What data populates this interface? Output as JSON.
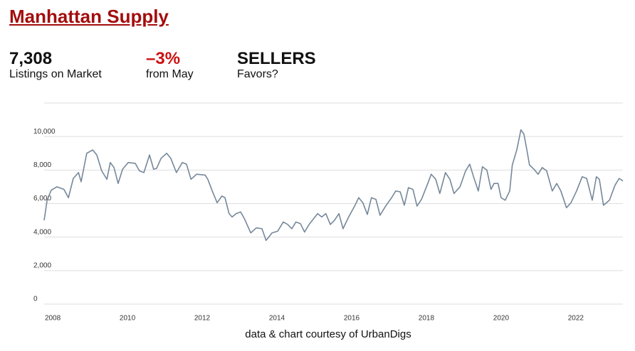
{
  "header": {
    "title": "Manhattan Supply"
  },
  "stats": [
    {
      "value": "7,308",
      "label": "Listings on Market"
    },
    {
      "value": "–3%",
      "label": "from May"
    },
    {
      "value": "SELLERS",
      "label": "Favors?"
    }
  ],
  "chart_data": {
    "type": "line",
    "color": "#76889a",
    "xlim": [
      2007.77,
      2023.26
    ],
    "xticks": [
      2008,
      2010,
      2012,
      2014,
      2016,
      2018,
      2020,
      2022
    ],
    "ylim": [
      0,
      12000
    ],
    "yticks": [
      0,
      {
        "value": 2000,
        "label": "2,000"
      },
      {
        "value": 4000,
        "label": "4,000"
      },
      {
        "value": 6000,
        "label": "6,000"
      },
      {
        "value": 8000,
        "label": "8,000"
      },
      {
        "value": 10000,
        "label": "10,000"
      }
    ],
    "grid": true,
    "x": [
      2007.77,
      2007.85,
      2007.96,
      2008.11,
      2008.3,
      2008.42,
      2008.55,
      2008.69,
      2008.76,
      2008.91,
      2009.07,
      2009.18,
      2009.31,
      2009.45,
      2009.54,
      2009.64,
      2009.75,
      2009.87,
      2010.02,
      2010.21,
      2010.32,
      2010.44,
      2010.59,
      2010.7,
      2010.78,
      2010.9,
      2011.05,
      2011.16,
      2011.31,
      2011.47,
      2011.58,
      2011.7,
      2011.85,
      2012.08,
      2012.15,
      2012.27,
      2012.4,
      2012.53,
      2012.61,
      2012.72,
      2012.8,
      2012.91,
      2013.03,
      2013.14,
      2013.3,
      2013.45,
      2013.6,
      2013.71,
      2013.87,
      2014.02,
      2014.17,
      2014.29,
      2014.4,
      2014.51,
      2014.63,
      2014.74,
      2014.86,
      2015.09,
      2015.2,
      2015.31,
      2015.43,
      2015.54,
      2015.66,
      2015.77,
      2015.92,
      2016.08,
      2016.19,
      2016.3,
      2016.42,
      2016.53,
      2016.65,
      2016.76,
      2016.91,
      2017.07,
      2017.18,
      2017.3,
      2017.41,
      2017.52,
      2017.64,
      2017.75,
      2017.87,
      2018.02,
      2018.13,
      2018.25,
      2018.36,
      2018.51,
      2018.63,
      2018.74,
      2018.9,
      2019.05,
      2019.16,
      2019.27,
      2019.39,
      2019.5,
      2019.62,
      2019.73,
      2019.81,
      2019.92,
      2020.0,
      2020.11,
      2020.23,
      2020.3,
      2020.42,
      2020.53,
      2020.61,
      2020.69,
      2020.76,
      2020.88,
      2020.99,
      2021.1,
      2021.22,
      2021.37,
      2021.49,
      2021.6,
      2021.75,
      2021.87,
      2022.02,
      2022.17,
      2022.29,
      2022.44,
      2022.55,
      2022.63,
      2022.74,
      2022.9,
      2023.05,
      2023.16,
      2023.26
    ],
    "values": [
      5000,
      6200,
      6800,
      7000,
      6850,
      6350,
      7500,
      7850,
      7300,
      9000,
      9200,
      8900,
      7950,
      7450,
      8450,
      8150,
      7200,
      8050,
      8450,
      8400,
      7950,
      7850,
      8900,
      8050,
      8100,
      8700,
      9000,
      8700,
      7850,
      8450,
      8350,
      7450,
      7750,
      7700,
      7450,
      6750,
      6050,
      6450,
      6350,
      5400,
      5200,
      5400,
      5500,
      5050,
      4250,
      4550,
      4500,
      3800,
      4250,
      4350,
      4900,
      4750,
      4500,
      4900,
      4800,
      4300,
      4750,
      5400,
      5200,
      5400,
      4750,
      5000,
      5400,
      4500,
      5200,
      5850,
      6350,
      6050,
      5350,
      6350,
      6250,
      5300,
      5850,
      6350,
      6750,
      6700,
      5900,
      6950,
      6850,
      5850,
      6250,
      7100,
      7750,
      7450,
      6600,
      7850,
      7450,
      6600,
      7000,
      7950,
      8350,
      7550,
      6750,
      8200,
      8000,
      6850,
      7200,
      7200,
      6350,
      6200,
      6750,
      8300,
      9200,
      10400,
      10150,
      9200,
      8300,
      8050,
      7750,
      8150,
      7950,
      6750,
      7200,
      6750,
      5750,
      6050,
      6750,
      7600,
      7500,
      6200,
      7600,
      7450,
      5900,
      6200,
      7100,
      7500,
      7350
    ]
  },
  "credit": "data & chart courtesy of UrbanDigs"
}
